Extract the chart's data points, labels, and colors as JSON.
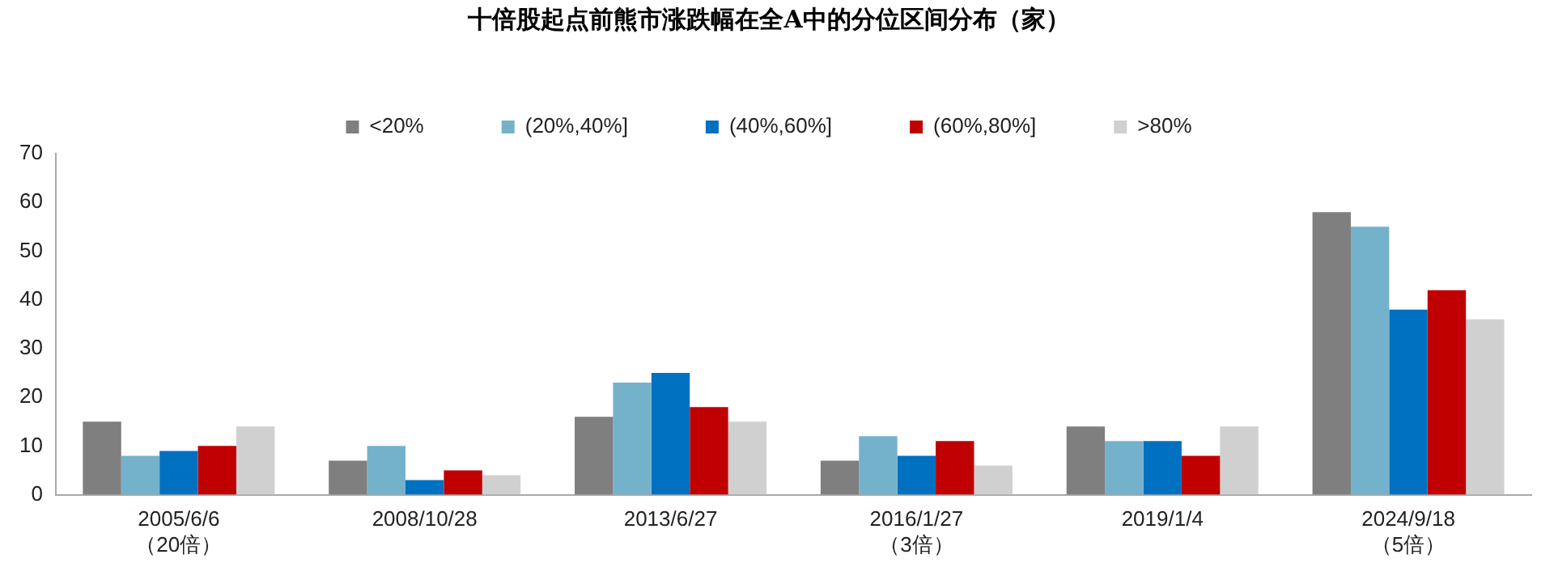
{
  "chart_data": {
    "type": "bar",
    "title": "十倍股起点前熊市涨跌幅在全A中的分位区间分布（家）",
    "categories": [
      "2005/6/6\n（20倍）",
      "2008/10/28",
      "2013/6/27",
      "2016/1/27\n（3倍）",
      "2019/1/4",
      "2024/9/18\n（5倍）"
    ],
    "series": [
      {
        "name": "<20%",
        "color": "#7f7f7f",
        "values": [
          15,
          7,
          16,
          7,
          14,
          58
        ]
      },
      {
        "name": "(20%,40%]",
        "color": "#74b2cc",
        "values": [
          8,
          10,
          23,
          12,
          11,
          55
        ]
      },
      {
        "name": "(40%,60%]",
        "color": "#0070c0",
        "values": [
          9,
          3,
          25,
          8,
          11,
          38
        ]
      },
      {
        "name": "(60%,80%]",
        "color": "#c00000",
        "values": [
          10,
          5,
          18,
          11,
          8,
          42
        ]
      },
      {
        "name": ">80%",
        "color": "#d0d0d0",
        "values": [
          14,
          4,
          15,
          6,
          14,
          36
        ]
      }
    ],
    "ylim": [
      0,
      70
    ],
    "yticks": [
      0,
      10,
      20,
      30,
      40,
      50,
      60,
      70
    ],
    "grid": false,
    "legend": "top"
  }
}
